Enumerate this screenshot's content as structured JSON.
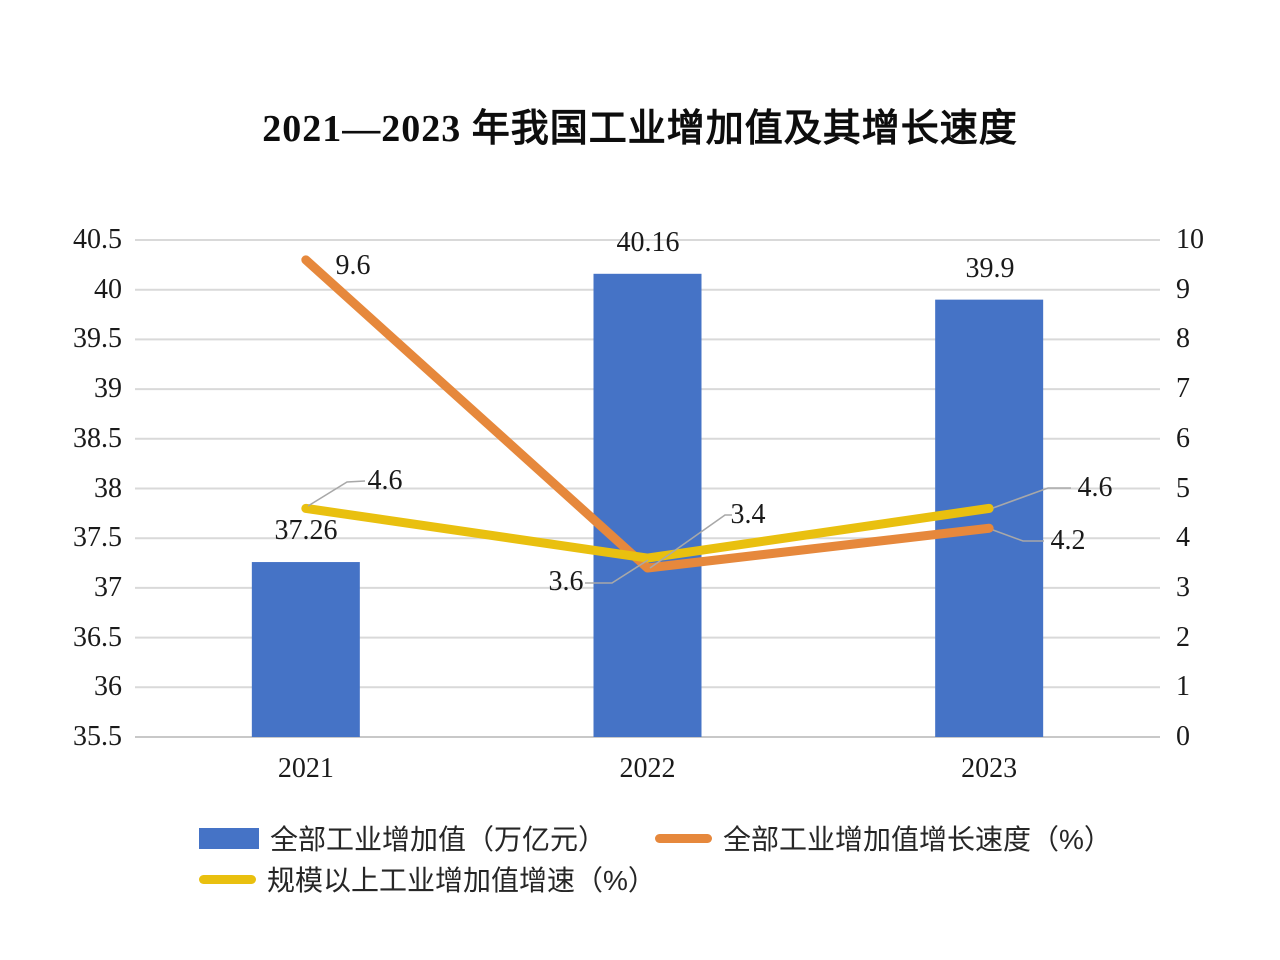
{
  "title": "2021—2023 年我国工业增加值及其增长速度",
  "chart_data": {
    "type": "combo-bar-line",
    "categories": [
      "2021",
      "2022",
      "2023"
    ],
    "series": [
      {
        "name": "全部工业增加值（万亿元）",
        "type": "bar",
        "axis": "left",
        "color": "#4573C6",
        "values": [
          37.26,
          40.16,
          39.9
        ]
      },
      {
        "name": "全部工业增加值增长速度（%）",
        "type": "line",
        "axis": "right",
        "color": "#E6883C",
        "values": [
          9.6,
          3.4,
          4.2
        ]
      },
      {
        "name": "规模以上工业增加值增速（%）",
        "type": "line",
        "axis": "right",
        "color": "#E9C00F",
        "values": [
          4.6,
          3.6,
          4.6
        ]
      }
    ],
    "left_axis": {
      "min": 35.5,
      "max": 40.5,
      "step": 0.5,
      "ticks": [
        "40.5",
        "40",
        "39.5",
        "39",
        "38.5",
        "38",
        "37.5",
        "37",
        "36.5",
        "36",
        "35.5"
      ]
    },
    "right_axis": {
      "min": 0,
      "max": 10,
      "step": 1,
      "ticks": [
        "10",
        "9",
        "8",
        "7",
        "6",
        "5",
        "4",
        "3",
        "2",
        "1",
        "0"
      ]
    },
    "grid": true,
    "legend_position": "bottom",
    "gridline_color": "#D9D9D9",
    "baseline_color": "#C8C8C8",
    "leader_color": "#A8A8A8"
  }
}
